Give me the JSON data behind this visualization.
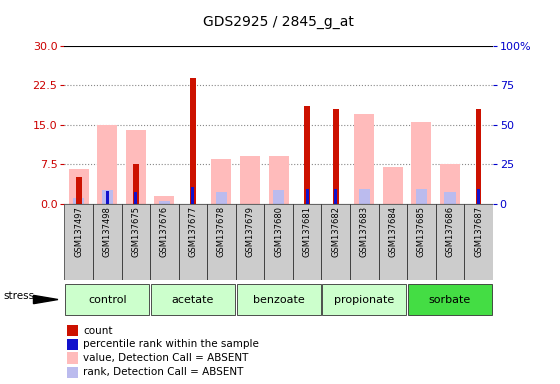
{
  "title": "GDS2925 / 2845_g_at",
  "samples": [
    "GSM137497",
    "GSM137498",
    "GSM137675",
    "GSM137676",
    "GSM137677",
    "GSM137678",
    "GSM137679",
    "GSM137680",
    "GSM137681",
    "GSM137682",
    "GSM137683",
    "GSM137684",
    "GSM137685",
    "GSM137686",
    "GSM137687"
  ],
  "group_spans": [
    {
      "name": "control",
      "start": 0,
      "end": 3,
      "color": "#ccffcc"
    },
    {
      "name": "acetate",
      "start": 3,
      "end": 6,
      "color": "#ccffcc"
    },
    {
      "name": "benzoate",
      "start": 6,
      "end": 9,
      "color": "#ccffcc"
    },
    {
      "name": "propionate",
      "start": 9,
      "end": 12,
      "color": "#ccffcc"
    },
    {
      "name": "sorbate",
      "start": 12,
      "end": 15,
      "color": "#44dd44"
    }
  ],
  "count": [
    5.0,
    null,
    7.5,
    null,
    24.0,
    null,
    null,
    null,
    18.5,
    18.0,
    null,
    null,
    null,
    null,
    18.0
  ],
  "percentile": [
    null,
    8.0,
    7.5,
    null,
    10.5,
    null,
    null,
    null,
    9.0,
    9.0,
    null,
    null,
    null,
    null,
    9.5
  ],
  "val_absent": [
    6.5,
    15.0,
    14.0,
    1.5,
    null,
    8.5,
    9.0,
    9.0,
    null,
    null,
    17.0,
    7.0,
    15.5,
    7.5,
    null
  ],
  "rank_absent": [
    3.5,
    8.5,
    null,
    1.8,
    null,
    7.0,
    null,
    8.5,
    null,
    null,
    9.0,
    null,
    9.0,
    7.0,
    null
  ],
  "ylim_left": [
    0,
    30
  ],
  "ylim_right": [
    0,
    100
  ],
  "yticks_left": [
    0,
    7.5,
    15,
    22.5,
    30
  ],
  "yticks_right": [
    0,
    25,
    50,
    75,
    100
  ],
  "color_count": "#cc1100",
  "color_pct": "#1111cc",
  "color_val_abs": "#ffbbbb",
  "color_rank_abs": "#bbbbee",
  "left_tick_color": "#cc0000",
  "right_tick_color": "#0000cc",
  "tick_label_bg": "#cccccc",
  "plot_bg": "#ffffff"
}
